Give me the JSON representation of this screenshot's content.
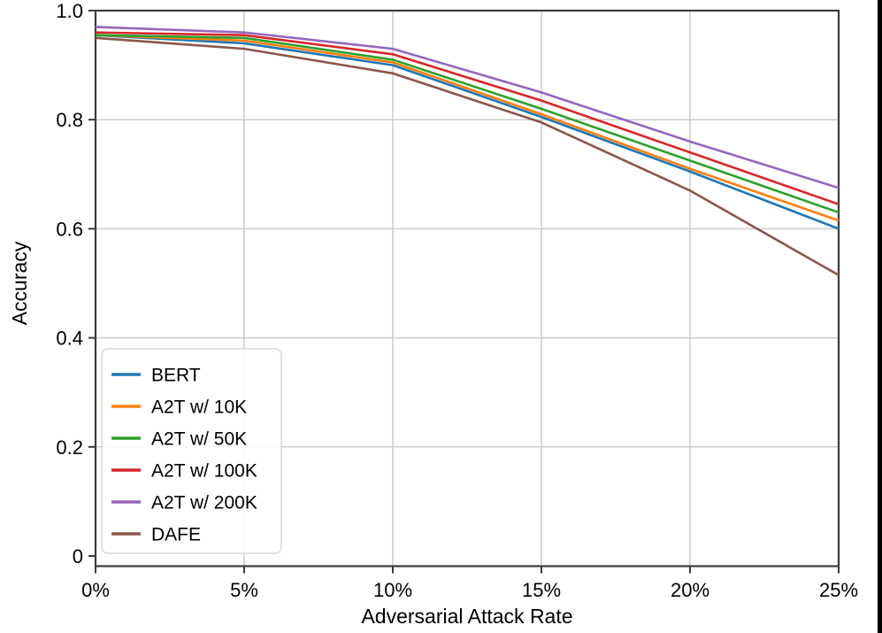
{
  "chart_data": {
    "type": "line",
    "title": "",
    "xlabel": "Adversarial Attack Rate",
    "ylabel": "Accuracy",
    "x": [
      0,
      5,
      10,
      15,
      20,
      25
    ],
    "x_tick_labels": [
      "0%",
      "5%",
      "10%",
      "15%",
      "20%",
      "25%"
    ],
    "y_ticks": [
      0,
      0.2,
      0.4,
      0.6,
      0.8,
      1.0
    ],
    "y_tick_labels": [
      "0",
      "0.2",
      "0.4",
      "0.6",
      "0.8",
      "1.0"
    ],
    "xlim": [
      0,
      25
    ],
    "ylim": [
      -0.018,
      1.0
    ],
    "grid": true,
    "legend_position": "lower left",
    "series": [
      {
        "name": "BERT",
        "color": "#1f77b4",
        "values": [
          0.955,
          0.94,
          0.9,
          0.805,
          0.705,
          0.6
        ]
      },
      {
        "name": "A2T w/ 10K",
        "color": "#ff7f0e",
        "values": [
          0.955,
          0.945,
          0.905,
          0.81,
          0.71,
          0.615
        ]
      },
      {
        "name": "A2T w/ 50K",
        "color": "#2ca02c",
        "values": [
          0.955,
          0.95,
          0.91,
          0.82,
          0.725,
          0.63
        ]
      },
      {
        "name": "A2T w/ 100K",
        "color": "#d62728",
        "values": [
          0.96,
          0.955,
          0.92,
          0.835,
          0.74,
          0.645
        ]
      },
      {
        "name": "A2T w/ 200K",
        "color": "#9467bd",
        "values": [
          0.97,
          0.96,
          0.93,
          0.85,
          0.76,
          0.675
        ]
      },
      {
        "name": "DAFE",
        "color": "#8c564b",
        "values": [
          0.95,
          0.93,
          0.885,
          0.795,
          0.67,
          0.515
        ]
      }
    ],
    "colors": {
      "grid": "#cccccc",
      "spine": "#3b3b3b",
      "background": "#ffffff",
      "legend_border": "#d8d8d8",
      "right_edge_strip": "#000000"
    }
  }
}
